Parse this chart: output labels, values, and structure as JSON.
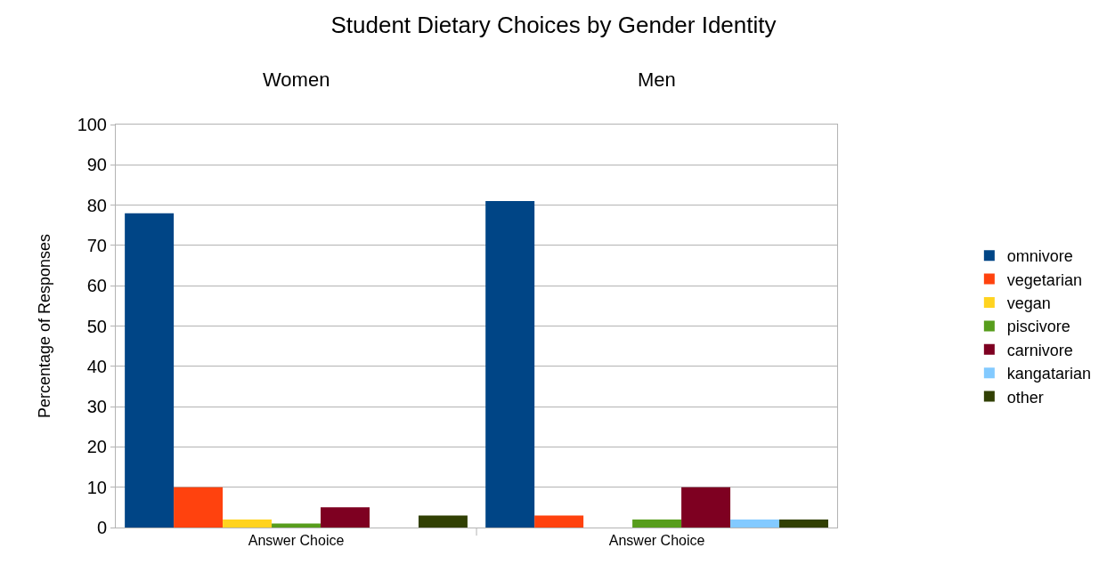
{
  "chart_data": {
    "type": "bar",
    "title": "Student Dietary Choices by Gender Identity",
    "ylabel": "Percentage of Responses",
    "categories": [
      "Answer Choice",
      "Answer Choice"
    ],
    "annotations": [
      "Women",
      "Men"
    ],
    "series": [
      {
        "name": "omnivore",
        "color": "#004586",
        "values": [
          78,
          81
        ]
      },
      {
        "name": "vegetarian",
        "color": "#ff420e",
        "values": [
          10,
          3
        ]
      },
      {
        "name": "vegan",
        "color": "#ffd320",
        "values": [
          2,
          0
        ]
      },
      {
        "name": "piscivore",
        "color": "#579d1c",
        "values": [
          1,
          2
        ]
      },
      {
        "name": "carnivore",
        "color": "#7e0021",
        "values": [
          5,
          10
        ]
      },
      {
        "name": "kangatarian",
        "color": "#83caff",
        "values": [
          0,
          2
        ]
      },
      {
        "name": "other",
        "color": "#314004",
        "values": [
          3,
          2
        ]
      }
    ],
    "ylim": [
      0,
      100
    ],
    "yticks": [
      0,
      10,
      20,
      30,
      40,
      50,
      60,
      70,
      80,
      90,
      100
    ],
    "grid": "y",
    "legend": "right"
  }
}
